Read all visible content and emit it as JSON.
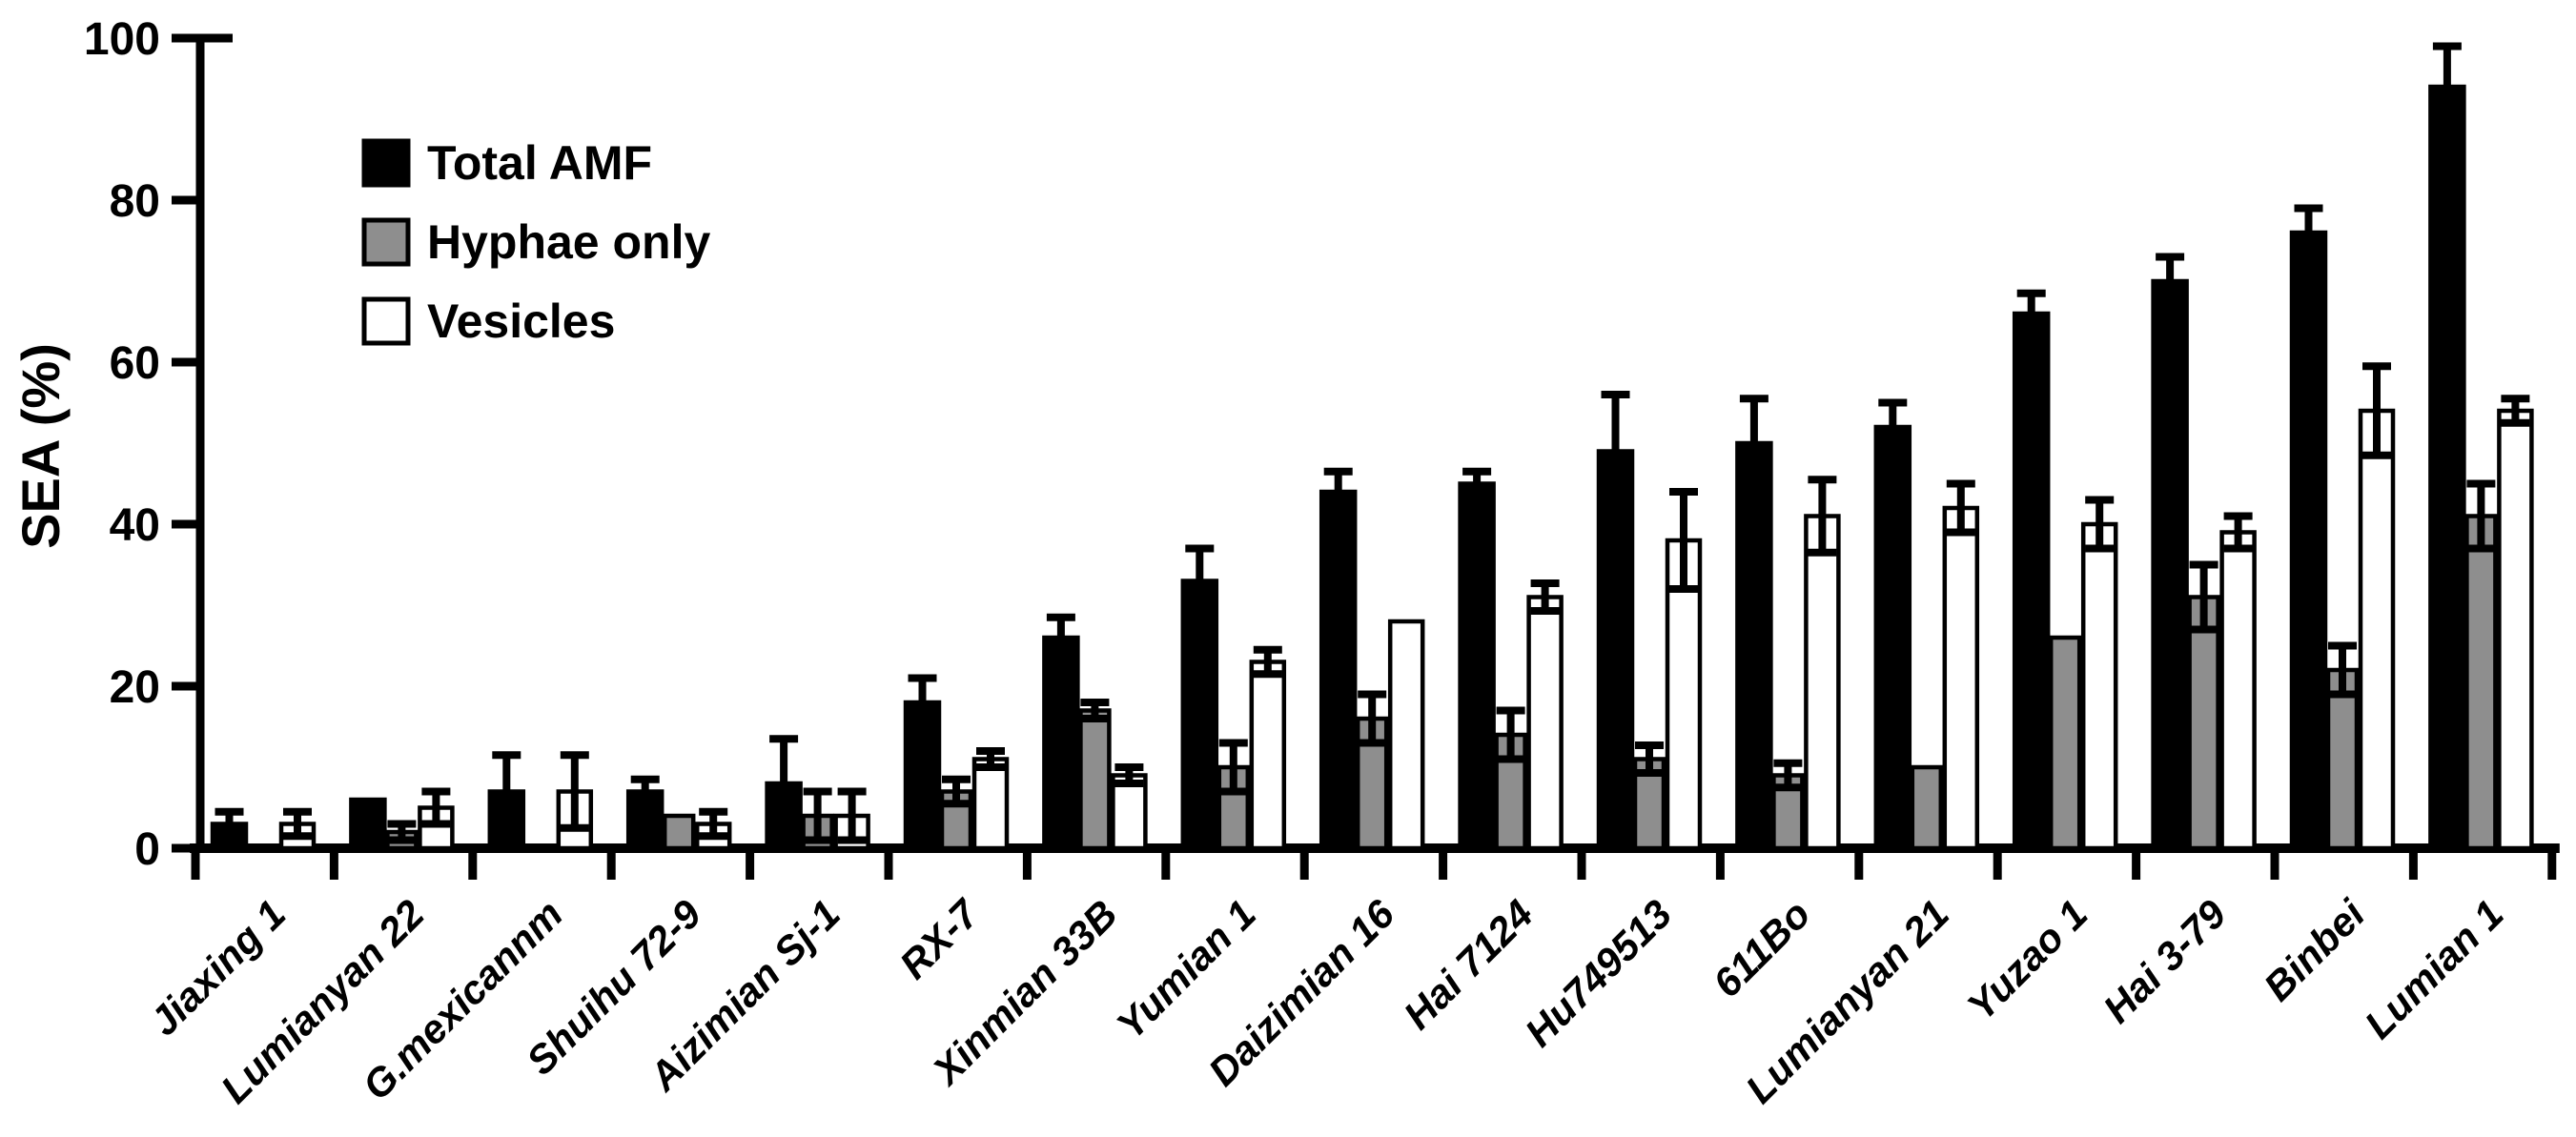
{
  "figure": {
    "background": "#ffffff",
    "axis_color": "#000000",
    "y_axis_title": "SEA (%)"
  },
  "legend": {
    "items": [
      {
        "label": "Total AMF",
        "swatch": "filled-black-square-icon",
        "color": "#000000"
      },
      {
        "label": "Hyphae only",
        "swatch": "filled-gray-square-icon",
        "color": "#8e8e8e"
      },
      {
        "label": "Vesicles",
        "swatch": "outline-white-square-icon",
        "color": "#ffffff"
      }
    ]
  },
  "chart_data": {
    "type": "bar",
    "title": "",
    "xlabel": "",
    "ylabel": "SEA (%)",
    "ylim": [
      0,
      100
    ],
    "yticks": [
      0,
      20,
      40,
      60,
      80,
      100
    ],
    "grid": false,
    "legend_position": "upper-left-inside",
    "error_bars": true,
    "categories": [
      "Jiaxing 1",
      "Lumianyan 22",
      "G.mexicannm",
      "Shuihu 72-9",
      "Aizimian Sj-1",
      "RX-7",
      "Xinmian 33B",
      "Yumian 1",
      "Daizimian 16",
      "Hai 7124",
      "Hu749513",
      "611Bo",
      "Lumianyan 21",
      "Yuzao 1",
      "Hai 3-79",
      "Binbei",
      "Lumian 1"
    ],
    "series": [
      {
        "name": "Total AMF",
        "color": "#000000",
        "fill_style": "solid",
        "values": [
          3,
          6,
          7,
          7,
          8,
          18,
          26,
          33,
          44,
          45,
          49,
          50,
          52,
          66,
          70,
          76,
          94
        ],
        "errors": [
          1.5,
          0,
          4.5,
          1.5,
          5.5,
          3,
          2.5,
          4,
          2.5,
          1.5,
          7,
          5.5,
          3,
          2.5,
          3,
          3,
          5
        ]
      },
      {
        "name": "Hyphae only",
        "color": "#8e8e8e",
        "fill_style": "solid",
        "values": [
          0,
          2,
          0,
          4,
          4,
          7,
          17,
          10,
          16,
          14,
          11,
          9,
          10,
          26,
          31,
          22,
          41
        ],
        "errors": [
          0,
          1,
          0,
          0,
          3,
          1.5,
          1,
          3,
          3,
          3,
          1.7,
          1.5,
          0,
          0,
          4,
          3,
          4
        ]
      },
      {
        "name": "Vesicles",
        "color": "#ffffff",
        "fill_style": "outline",
        "values": [
          3,
          5,
          7,
          3,
          4,
          11,
          9,
          23,
          28,
          31,
          38,
          41,
          42,
          40,
          39,
          54,
          54
        ],
        "errors": [
          1.5,
          2,
          4.5,
          1.5,
          3,
          1,
          1,
          1.5,
          0,
          1.7,
          6,
          4.5,
          3,
          3,
          2,
          5.5,
          1.5
        ]
      }
    ]
  }
}
